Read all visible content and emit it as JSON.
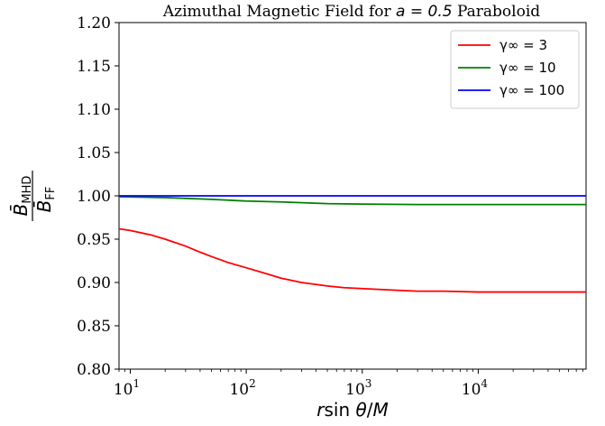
{
  "chart_data": {
    "type": "line",
    "title": "Azimuthal Magnetic Field for a = 0.5 Paraboloid",
    "title_prefix": "Azimuthal Magnetic Field for ",
    "title_math": "a = 0.5",
    "title_suffix": " Paraboloid",
    "xlabel": "r sin θ/M",
    "ylabel": "B̄_MHD / B̄_FF",
    "ylabel_num": "B̄",
    "ylabel_num_sub": "MHD",
    "ylabel_den": "B̄",
    "ylabel_den_sub": "FF",
    "x_scale": "log",
    "xlim": [
      8,
      85000
    ],
    "ylim": [
      0.8,
      1.2
    ],
    "x_ticks": [
      {
        "value": 10,
        "base": "10",
        "exp": "1"
      },
      {
        "value": 100,
        "base": "10",
        "exp": "2"
      },
      {
        "value": 1000,
        "base": "10",
        "exp": "3"
      },
      {
        "value": 10000,
        "base": "10",
        "exp": "4"
      }
    ],
    "y_ticks": [
      "0.80",
      "0.85",
      "0.90",
      "0.95",
      "1.00",
      "1.05",
      "1.10",
      "1.15",
      "1.20"
    ],
    "grid": false,
    "legend_position": "upper right",
    "series": [
      {
        "name": "γ∞ = 3",
        "color": "#ff0000",
        "x": [
          8,
          10,
          15,
          20,
          30,
          40,
          50,
          70,
          100,
          150,
          200,
          300,
          500,
          700,
          1000,
          2000,
          3000,
          5000,
          10000,
          30000,
          85000
        ],
        "y": [
          0.962,
          0.96,
          0.955,
          0.95,
          0.942,
          0.935,
          0.93,
          0.923,
          0.917,
          0.91,
          0.905,
          0.9,
          0.896,
          0.894,
          0.893,
          0.891,
          0.89,
          0.89,
          0.889,
          0.889,
          0.889
        ]
      },
      {
        "name": "γ∞ = 10",
        "color": "#008000",
        "x": [
          8,
          20,
          50,
          100,
          200,
          500,
          1000,
          3000,
          10000,
          85000
        ],
        "y": [
          0.999,
          0.998,
          0.996,
          0.994,
          0.993,
          0.991,
          0.9905,
          0.99,
          0.99,
          0.99
        ]
      },
      {
        "name": "γ∞ = 100",
        "color": "#0000ff",
        "x": [
          8,
          85000
        ],
        "y": [
          1.0,
          1.0
        ]
      }
    ]
  }
}
